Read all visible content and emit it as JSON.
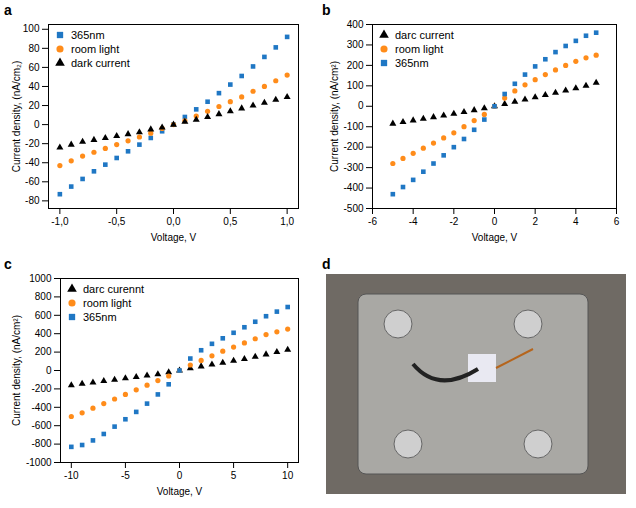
{
  "chart_data": [
    {
      "panel": "a",
      "type": "scatter",
      "x_label": "Voltage, V",
      "y_label": "Current density, (nA/cm₂)",
      "xlim": [
        -1.1,
        1.1
      ],
      "xticks": [
        {
          "value": -1,
          "label": "-1,0"
        },
        {
          "value": -0.5,
          "label": "-0,5"
        },
        {
          "value": 0,
          "label": "0,0"
        },
        {
          "value": 0.5,
          "label": "0,5"
        },
        {
          "value": 1,
          "label": "1,0"
        }
      ],
      "ylim": [
        -88,
        105
      ],
      "yticks": [
        -80,
        -60,
        -40,
        -20,
        0,
        20,
        40,
        60,
        80,
        100
      ],
      "grid": false,
      "legend": "top-left",
      "x": [
        -1.0,
        -0.9,
        -0.8,
        -0.7,
        -0.6,
        -0.5,
        -0.4,
        -0.3,
        -0.2,
        -0.1,
        0.0,
        0.1,
        0.2,
        0.3,
        0.4,
        0.5,
        0.6,
        0.7,
        0.8,
        0.9,
        1.0
      ],
      "series": [
        {
          "name": "365nm",
          "color": "#1f77c4",
          "marker": "square",
          "values": [
            -73,
            -65,
            -57,
            -49,
            -42,
            -35,
            -28,
            -21,
            -14,
            -7,
            0,
            8,
            16,
            24,
            33,
            42,
            51,
            61,
            71,
            81,
            92
          ]
        },
        {
          "name": "room light",
          "color": "#ff8c1a",
          "marker": "circle",
          "values": [
            -43,
            -38,
            -33,
            -29,
            -25,
            -21,
            -17,
            -13,
            -9,
            -4,
            0,
            4,
            9,
            14,
            19,
            24,
            29,
            35,
            40,
            46,
            52
          ]
        },
        {
          "name": "dark current",
          "color": "#000000",
          "marker": "triangle",
          "values": [
            -24,
            -21,
            -18,
            -16,
            -14,
            -12,
            -10,
            -8,
            -5,
            -3,
            0,
            3,
            5,
            8,
            11,
            14,
            17,
            20,
            23,
            26,
            29
          ]
        }
      ]
    },
    {
      "panel": "b",
      "type": "scatter",
      "x_label": "Voltage, V",
      "y_label": "Current density, (nA/cm²)",
      "xlim": [
        -6,
        6
      ],
      "xticks": [
        -6,
        -4,
        -2,
        0,
        2,
        4,
        6
      ],
      "ylim": [
        -500,
        400
      ],
      "yticks": [
        -500,
        -400,
        -300,
        -200,
        -100,
        0,
        100,
        200,
        300,
        400
      ],
      "grid": false,
      "legend": "top-left",
      "x": [
        -5.0,
        -4.5,
        -4.0,
        -3.5,
        -3.0,
        -2.5,
        -2.0,
        -1.5,
        -1.0,
        -0.5,
        0.0,
        0.5,
        1.0,
        1.5,
        2.0,
        2.5,
        3.0,
        3.5,
        4.0,
        4.5,
        5.0
      ],
      "series": [
        {
          "name": "darc current",
          "color": "#000000",
          "marker": "triangle",
          "values": [
            -85,
            -77,
            -69,
            -61,
            -53,
            -45,
            -37,
            -28,
            -19,
            -10,
            0,
            11,
            22,
            33,
            44,
            55,
            66,
            77,
            88,
            100,
            115
          ]
        },
        {
          "name": "room light",
          "color": "#ff8c1a",
          "marker": "circle",
          "values": [
            -280,
            -255,
            -230,
            -205,
            -180,
            -155,
            -130,
            -100,
            -70,
            -40,
            0,
            40,
            75,
            105,
            130,
            155,
            178,
            200,
            220,
            237,
            250
          ]
        },
        {
          "name": "365nm",
          "color": "#1f77c4",
          "marker": "square",
          "values": [
            -430,
            -395,
            -360,
            -320,
            -280,
            -240,
            -200,
            -160,
            -115,
            -65,
            0,
            60,
            110,
            155,
            195,
            230,
            265,
            295,
            320,
            345,
            360
          ]
        }
      ]
    },
    {
      "panel": "c",
      "type": "scatter",
      "x_label": "Voltage, V",
      "y_label": "Current density, (nA/cm²)",
      "xlim": [
        -11,
        11
      ],
      "xticks": [
        -10,
        -5,
        0,
        5,
        10
      ],
      "ylim": [
        -1000,
        1000
      ],
      "yticks": [
        -1000,
        -800,
        -600,
        -400,
        -200,
        0,
        200,
        400,
        600,
        800,
        1000
      ],
      "grid": false,
      "legend": "top-left",
      "x": [
        -10,
        -9,
        -8,
        -7,
        -6,
        -5,
        -4,
        -3,
        -2,
        -1,
        0,
        1,
        2,
        3,
        4,
        5,
        6,
        7,
        8,
        9,
        10
      ],
      "series": [
        {
          "name": "darc curennt",
          "color": "#000000",
          "marker": "triangle",
          "values": [
            -160,
            -145,
            -130,
            -115,
            -100,
            -85,
            -70,
            -55,
            -40,
            -20,
            0,
            25,
            45,
            65,
            85,
            105,
            125,
            150,
            175,
            200,
            225
          ]
        },
        {
          "name": "room light",
          "color": "#ff8c1a",
          "marker": "circle",
          "values": [
            -500,
            -460,
            -410,
            -360,
            -310,
            -260,
            -210,
            -160,
            -110,
            -60,
            0,
            60,
            110,
            160,
            210,
            255,
            300,
            345,
            390,
            420,
            450
          ]
        },
        {
          "name": "365nm",
          "color": "#1f77c4",
          "marker": "square",
          "values": [
            -830,
            -810,
            -760,
            -690,
            -610,
            -530,
            -450,
            -360,
            -260,
            -150,
            0,
            130,
            220,
            290,
            350,
            410,
            470,
            530,
            590,
            640,
            690
          ]
        }
      ]
    }
  ],
  "photo": {
    "panel": "d"
  }
}
